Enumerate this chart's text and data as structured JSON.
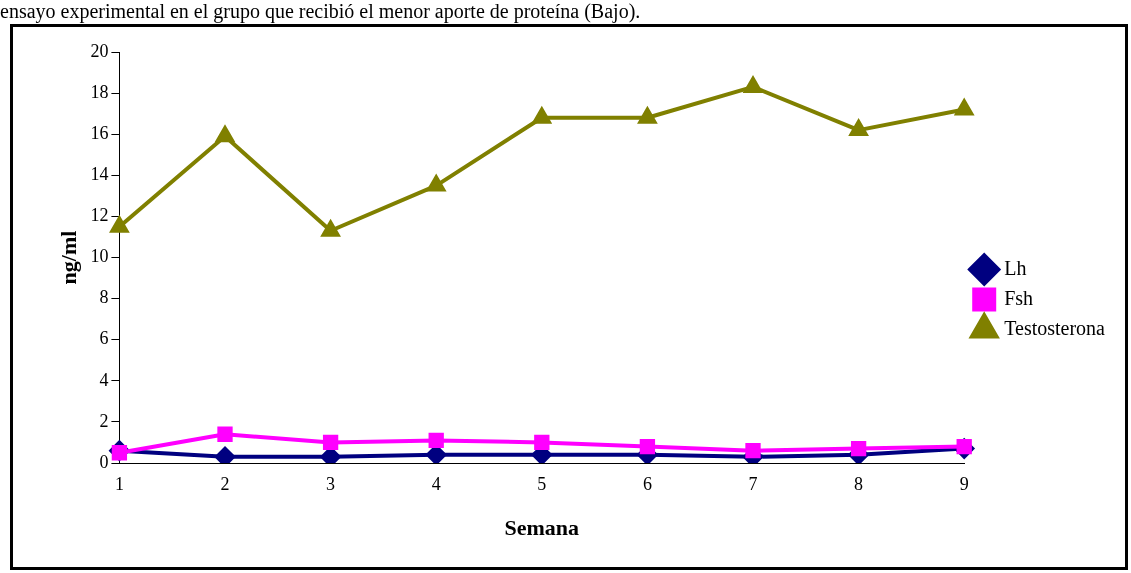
{
  "chart_data": {
    "type": "line",
    "title": "ensayo experimental en el grupo que recibió el menor aporte de proteína (Bajo).",
    "xlabel": "Semana",
    "ylabel": "ng/ml",
    "categories": [
      "1",
      "2",
      "3",
      "4",
      "5",
      "6",
      "7",
      "8",
      "9"
    ],
    "series": [
      {
        "name": "Lh",
        "color": "#000080",
        "marker": "diamond",
        "values": [
          0.6,
          0.3,
          0.3,
          0.4,
          0.4,
          0.4,
          0.3,
          0.4,
          0.7
        ]
      },
      {
        "name": "Fsh",
        "color": "#ff00ff",
        "marker": "square",
        "values": [
          0.5,
          1.4,
          1.0,
          1.1,
          1.0,
          0.8,
          0.6,
          0.7,
          0.8
        ]
      },
      {
        "name": "Testosterona",
        "color": "#808000",
        "marker": "triangle",
        "values": [
          11.5,
          15.9,
          11.3,
          13.5,
          16.8,
          16.8,
          18.3,
          16.2,
          17.2
        ]
      }
    ],
    "ylim": [
      0,
      20
    ],
    "yticks": [
      0,
      2,
      4,
      6,
      8,
      10,
      12,
      14,
      16,
      18,
      20
    ],
    "grid": false,
    "legend": "right"
  }
}
